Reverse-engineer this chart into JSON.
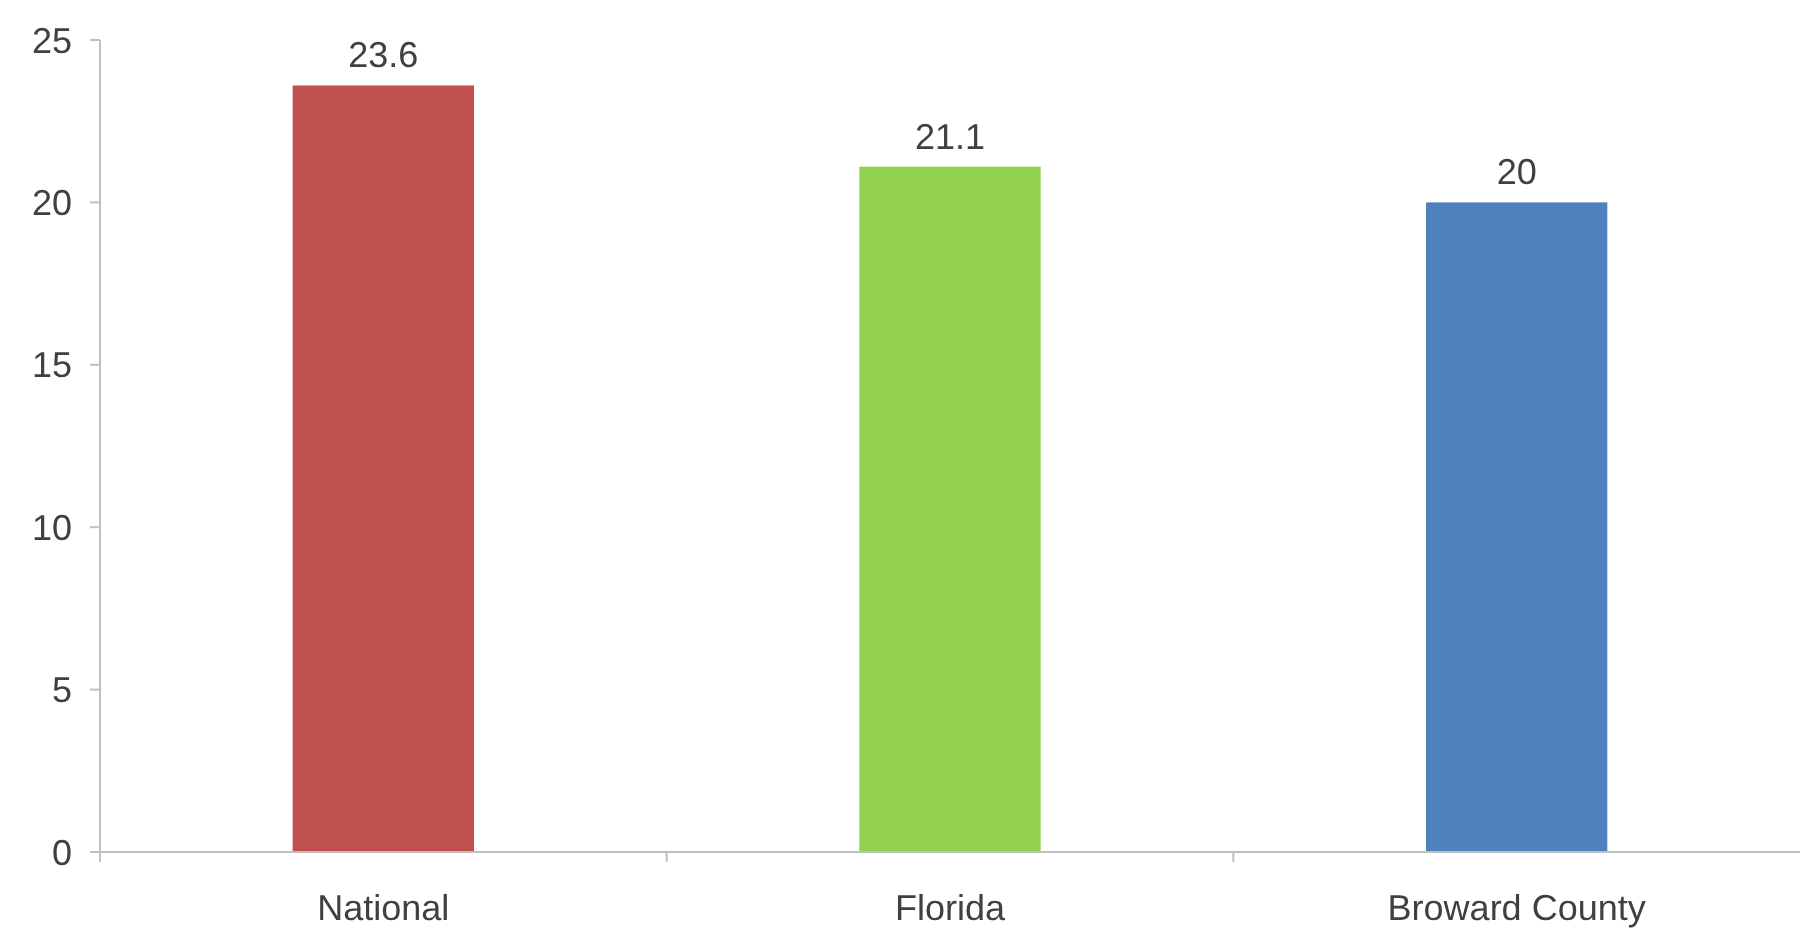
{
  "chart_data": {
    "type": "bar",
    "categories": [
      "National",
      "Florida",
      "Broward County"
    ],
    "values": [
      23.6,
      21.1,
      20
    ],
    "colors": [
      "#c0504d",
      "#92d050",
      "#4f81bd"
    ],
    "ylim": [
      0,
      25
    ],
    "yticks": [
      0,
      5,
      10,
      15,
      20,
      25
    ],
    "grid": false,
    "data_labels": true
  }
}
